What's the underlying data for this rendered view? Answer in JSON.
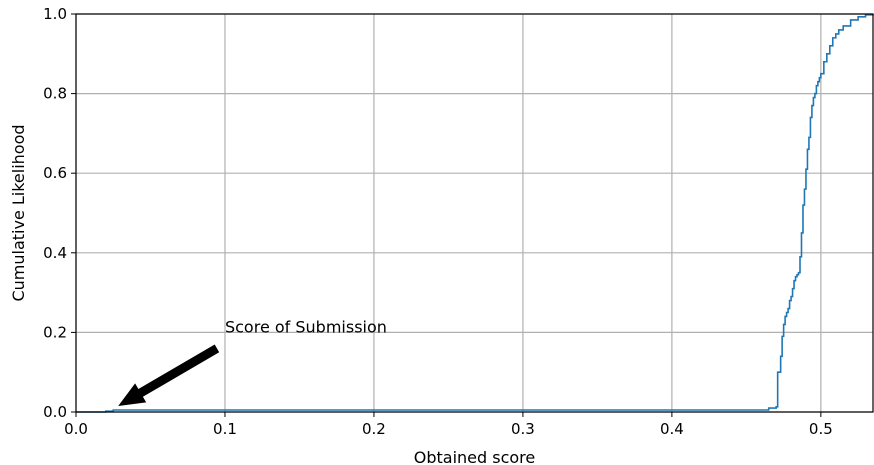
{
  "chart_data": {
    "type": "line",
    "title": "",
    "xlabel": "Obtained score",
    "ylabel": "Cumulative Likelihood",
    "xlim": [
      0.0,
      0.535
    ],
    "ylim": [
      0.0,
      1.0
    ],
    "grid": true,
    "line_color": "#1f77b4",
    "x_ticks": [
      {
        "value": 0.0,
        "label": "0.0"
      },
      {
        "value": 0.1,
        "label": "0.1"
      },
      {
        "value": 0.2,
        "label": "0.2"
      },
      {
        "value": 0.3,
        "label": "0.3"
      },
      {
        "value": 0.4,
        "label": "0.4"
      },
      {
        "value": 0.5,
        "label": "0.5"
      }
    ],
    "y_ticks": [
      {
        "value": 0.0,
        "label": "0.0"
      },
      {
        "value": 0.2,
        "label": "0.2"
      },
      {
        "value": 0.4,
        "label": "0.4"
      },
      {
        "value": 0.6,
        "label": "0.6"
      },
      {
        "value": 0.8,
        "label": "0.8"
      },
      {
        "value": 1.0,
        "label": "1.0"
      }
    ],
    "series": [
      {
        "x": [
          0.0,
          0.02,
          0.025,
          0.46,
          0.465,
          0.47,
          0.471,
          0.473,
          0.474,
          0.475,
          0.476,
          0.477,
          0.478,
          0.479,
          0.48,
          0.481,
          0.482,
          0.483,
          0.484,
          0.485,
          0.486,
          0.487,
          0.488,
          0.489,
          0.49,
          0.491,
          0.492,
          0.493,
          0.494,
          0.495,
          0.496,
          0.497,
          0.498,
          0.499,
          0.5,
          0.502,
          0.504,
          0.506,
          0.508,
          0.51,
          0.512,
          0.515,
          0.52,
          0.525,
          0.53,
          0.535
        ],
        "y": [
          0.0,
          0.002,
          0.005,
          0.005,
          0.01,
          0.013,
          0.1,
          0.14,
          0.19,
          0.22,
          0.24,
          0.25,
          0.26,
          0.28,
          0.29,
          0.31,
          0.33,
          0.34,
          0.345,
          0.35,
          0.39,
          0.45,
          0.52,
          0.56,
          0.61,
          0.66,
          0.69,
          0.74,
          0.77,
          0.79,
          0.8,
          0.82,
          0.83,
          0.84,
          0.85,
          0.88,
          0.9,
          0.92,
          0.94,
          0.95,
          0.96,
          0.97,
          0.985,
          0.993,
          0.998,
          1.0
        ]
      }
    ],
    "annotation": {
      "text": "Score of Submission",
      "text_x": 0.1,
      "text_y": 0.2,
      "arrow_x": 0.027,
      "arrow_y": 0.005
    }
  }
}
